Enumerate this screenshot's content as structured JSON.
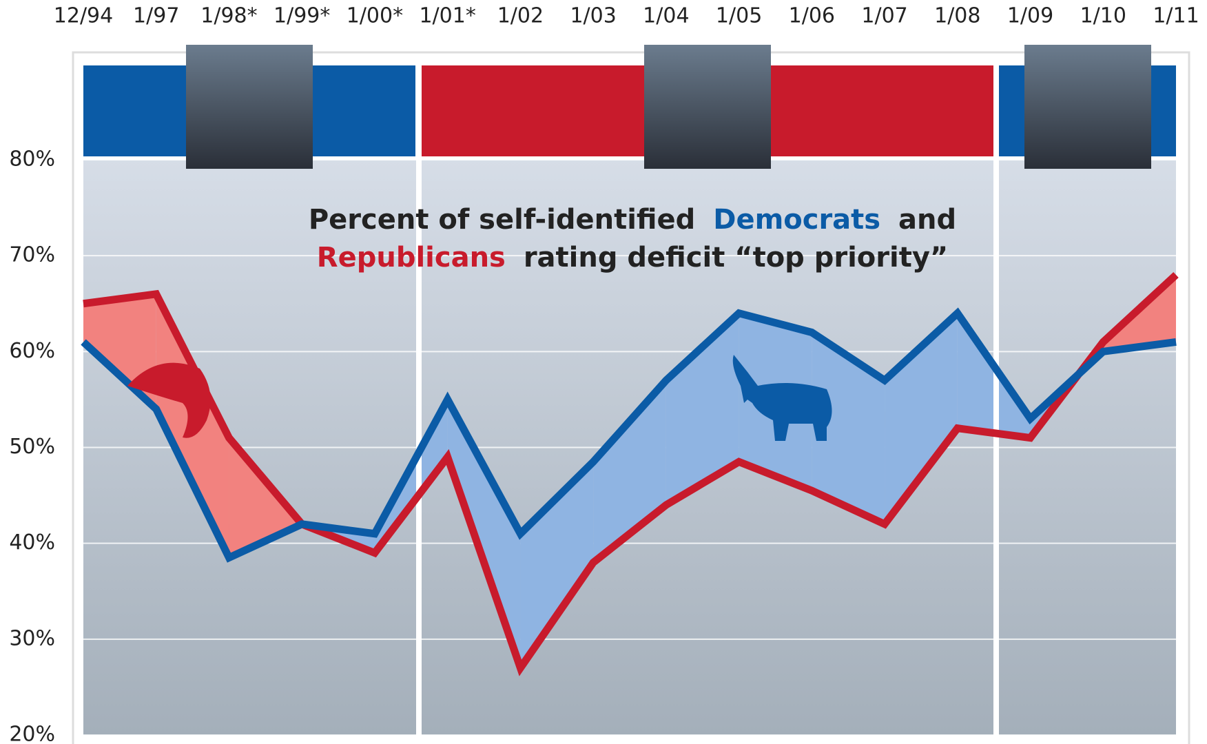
{
  "chart_data": {
    "type": "line",
    "title": [
      "Percent of self-identified",
      "and",
      "rating deficit “top priority”"
    ],
    "categories": [
      "12/94",
      "1/97",
      "1/98*",
      "1/99*",
      "1/00*",
      "1/01*",
      "1/02",
      "1/03",
      "1/04",
      "1/05",
      "1/06",
      "1/07",
      "1/08",
      "1/09",
      "1/10",
      "1/11"
    ],
    "series": [
      {
        "name": "Democrats",
        "color": "#0b5ba6",
        "values": [
          61,
          54,
          38.5,
          42,
          41,
          55,
          41,
          48.5,
          57,
          64,
          62,
          57,
          64,
          53,
          60,
          61
        ]
      },
      {
        "name": "Republicans",
        "color": "#c81b2c",
        "values": [
          65,
          66,
          51,
          42,
          39,
          49,
          27,
          38,
          44,
          48.5,
          45.5,
          42,
          52,
          51,
          61,
          68
        ]
      }
    ],
    "ylim": [
      20,
      80
    ],
    "yticks": [
      {
        "value": 20,
        "label": "20%"
      },
      {
        "value": 30,
        "label": "30%"
      },
      {
        "value": 40,
        "label": "40%"
      },
      {
        "value": 50,
        "label": "50%"
      },
      {
        "value": 60,
        "label": "60%"
      },
      {
        "value": 70,
        "label": "70%"
      },
      {
        "value": 80,
        "label": "80%"
      }
    ],
    "grid": true
  }
}
